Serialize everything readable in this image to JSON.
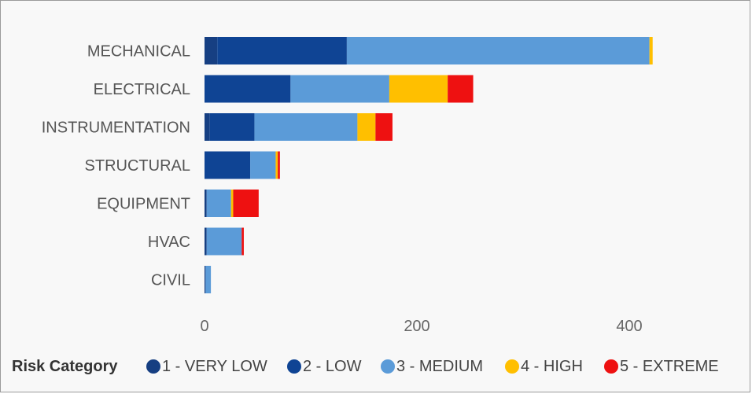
{
  "chart_data": {
    "type": "bar",
    "orientation": "horizontal",
    "stacked": true,
    "categories": [
      "MECHANICAL",
      "ELECTRICAL",
      "INSTRUMENTATION",
      "STRUCTURAL",
      "EQUIPMENT",
      "HVAC",
      "CIVIL"
    ],
    "series": [
      {
        "name": "1 - VERY LOW",
        "color": "#163f82",
        "values": [
          12,
          0,
          5,
          0,
          2,
          2,
          1
        ]
      },
      {
        "name": "2 - LOW",
        "color": "#0f4494",
        "values": [
          122,
          81,
          42,
          43,
          0,
          0,
          0
        ]
      },
      {
        "name": "3 - MEDIUM",
        "color": "#5b9bd8",
        "values": [
          285,
          93,
          97,
          24,
          23,
          33,
          5
        ]
      },
      {
        "name": "4 - HIGH",
        "color": "#ffbf00",
        "values": [
          3,
          55,
          17,
          2,
          2,
          0,
          0
        ]
      },
      {
        "name": "5 - EXTREME",
        "color": "#ee1111",
        "values": [
          0,
          24,
          16,
          2,
          24,
          2,
          0
        ]
      }
    ],
    "xlim": [
      0,
      470
    ],
    "x_ticks": [
      0,
      200,
      400
    ],
    "grid": false,
    "legend": {
      "title": "Risk Category",
      "position": "bottom-left"
    }
  }
}
